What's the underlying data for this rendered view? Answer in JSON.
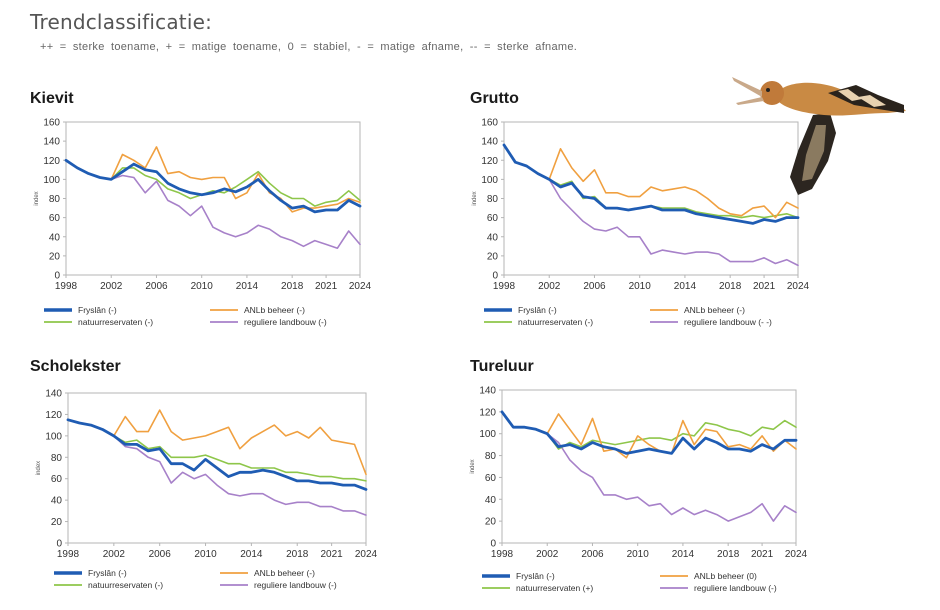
{
  "header": {
    "title": "Trendclassificatie:",
    "legend": "++ = sterke toename, + = matige toename, 0 = stabiel, - = matige afname, -- = sterke afname."
  },
  "colors": {
    "fryslan": "#1f5cb3",
    "anlb": "#f0a040",
    "natuur": "#8ec64a",
    "regulier": "#a781c9",
    "axis": "#b5b5b5"
  },
  "chart_data": [
    {
      "type": "line",
      "title": "Kievit",
      "ylabel": "index",
      "ylim": [
        0,
        160
      ],
      "yticks": [
        0,
        20,
        40,
        60,
        80,
        100,
        120,
        140,
        160
      ],
      "xlim": [
        1998,
        2024
      ],
      "xticks": [
        1998,
        2002,
        2006,
        2010,
        2014,
        2018,
        2021,
        2024
      ],
      "x": [
        1998,
        1999,
        2000,
        2001,
        2002,
        2003,
        2004,
        2005,
        2006,
        2007,
        2008,
        2009,
        2010,
        2011,
        2012,
        2013,
        2014,
        2015,
        2016,
        2017,
        2018,
        2019,
        2020,
        2021,
        2022,
        2023,
        2024
      ],
      "series": [
        {
          "key": "fryslan",
          "name": "Fryslân (-)",
          "values": [
            null,
            null,
            null,
            null,
            100,
            108,
            116,
            110,
            108,
            96,
            90,
            86,
            84,
            86,
            90,
            87,
            92,
            100,
            88,
            78,
            70,
            72,
            66,
            68,
            68,
            78,
            72
          ]
        },
        {
          "key": "anlb",
          "name": "ANLb beheer (-)",
          "values": [
            null,
            null,
            null,
            null,
            100,
            126,
            120,
            112,
            134,
            106,
            108,
            102,
            100,
            102,
            102,
            80,
            86,
            106,
            86,
            80,
            66,
            70,
            70,
            72,
            74,
            80,
            76
          ]
        },
        {
          "key": "natuur",
          "name": "natuurreservaten (-)",
          "values": [
            null,
            null,
            null,
            null,
            100,
            112,
            112,
            104,
            100,
            90,
            86,
            80,
            84,
            88,
            86,
            92,
            100,
            108,
            96,
            86,
            80,
            80,
            72,
            76,
            78,
            88,
            78
          ]
        },
        {
          "key": "regulier",
          "name": "reguliere landbouw (-)",
          "values": [
            null,
            null,
            null,
            null,
            100,
            104,
            102,
            86,
            98,
            78,
            72,
            62,
            72,
            50,
            44,
            40,
            44,
            52,
            48,
            40,
            36,
            30,
            36,
            32,
            28,
            46,
            32
          ]
        }
      ],
      "lead": {
        "key": "fryslan",
        "x": [
          1998,
          1999,
          2000,
          2001,
          2002
        ],
        "values": [
          120,
          112,
          106,
          102,
          100
        ]
      }
    },
    {
      "type": "line",
      "title": "Grutto",
      "ylabel": "index",
      "ylim": [
        0,
        160
      ],
      "yticks": [
        0,
        20,
        40,
        60,
        80,
        100,
        120,
        140,
        160
      ],
      "xlim": [
        1998,
        2024
      ],
      "xticks": [
        1998,
        2002,
        2006,
        2010,
        2014,
        2018,
        2021,
        2024
      ],
      "x": [
        1998,
        1999,
        2000,
        2001,
        2002,
        2003,
        2004,
        2005,
        2006,
        2007,
        2008,
        2009,
        2010,
        2011,
        2012,
        2013,
        2014,
        2015,
        2016,
        2017,
        2018,
        2019,
        2020,
        2021,
        2022,
        2023,
        2024
      ],
      "series": [
        {
          "key": "fryslan",
          "name": "Fryslân (-)",
          "values": [
            null,
            null,
            null,
            null,
            100,
            92,
            96,
            82,
            80,
            70,
            70,
            68,
            70,
            72,
            68,
            68,
            68,
            64,
            62,
            60,
            58,
            56,
            54,
            58,
            56,
            60,
            60
          ]
        },
        {
          "key": "anlb",
          "name": "ANLb beheer (-)",
          "values": [
            null,
            null,
            null,
            null,
            100,
            132,
            112,
            98,
            110,
            86,
            86,
            82,
            82,
            92,
            88,
            90,
            92,
            88,
            80,
            70,
            64,
            62,
            70,
            72,
            60,
            76,
            70
          ]
        },
        {
          "key": "natuur",
          "name": "natuurreservaten (-)",
          "values": [
            null,
            null,
            null,
            null,
            100,
            94,
            98,
            80,
            82,
            70,
            70,
            68,
            70,
            72,
            70,
            70,
            70,
            66,
            64,
            62,
            62,
            60,
            62,
            60,
            62,
            64,
            60
          ]
        },
        {
          "key": "regulier",
          "name": "reguliere landbouw (- -)",
          "values": [
            null,
            null,
            null,
            null,
            100,
            80,
            68,
            56,
            48,
            46,
            50,
            40,
            40,
            22,
            26,
            24,
            22,
            24,
            24,
            22,
            14,
            14,
            14,
            18,
            12,
            16,
            10
          ]
        }
      ],
      "lead": {
        "key": "fryslan",
        "x": [
          1998,
          1999,
          2000,
          2001,
          2002
        ],
        "values": [
          136,
          118,
          114,
          106,
          100
        ]
      }
    },
    {
      "type": "line",
      "title": "Scholekster",
      "ylabel": "index",
      "ylim": [
        0,
        140
      ],
      "yticks": [
        0,
        20,
        40,
        60,
        80,
        100,
        120,
        140
      ],
      "xlim": [
        1998,
        2024
      ],
      "xticks": [
        1998,
        2002,
        2006,
        2010,
        2014,
        2018,
        2021,
        2024
      ],
      "x": [
        1998,
        1999,
        2000,
        2001,
        2002,
        2003,
        2004,
        2005,
        2006,
        2007,
        2008,
        2009,
        2010,
        2011,
        2012,
        2013,
        2014,
        2015,
        2016,
        2017,
        2018,
        2019,
        2020,
        2021,
        2022,
        2023,
        2024
      ],
      "series": [
        {
          "key": "fryslan",
          "name": "Fryslân (-)",
          "values": [
            null,
            null,
            null,
            null,
            100,
            92,
            92,
            86,
            88,
            74,
            74,
            68,
            78,
            70,
            62,
            66,
            66,
            68,
            66,
            62,
            58,
            58,
            56,
            56,
            54,
            54,
            50
          ]
        },
        {
          "key": "anlb",
          "name": "ANLb beheer (-)",
          "values": [
            null,
            null,
            null,
            null,
            100,
            118,
            104,
            104,
            124,
            104,
            96,
            98,
            100,
            104,
            108,
            88,
            98,
            104,
            110,
            100,
            104,
            98,
            108,
            96,
            94,
            92,
            64
          ]
        },
        {
          "key": "natuur",
          "name": "natuurreservaten (-)",
          "values": [
            null,
            null,
            null,
            null,
            100,
            94,
            96,
            88,
            90,
            80,
            80,
            80,
            82,
            78,
            74,
            74,
            70,
            70,
            70,
            66,
            66,
            64,
            62,
            62,
            60,
            60,
            58
          ]
        },
        {
          "key": "regulier",
          "name": "reguliere landbouw (-)",
          "values": [
            null,
            null,
            null,
            null,
            100,
            90,
            88,
            80,
            76,
            56,
            66,
            60,
            64,
            54,
            46,
            44,
            46,
            46,
            40,
            36,
            38,
            38,
            34,
            34,
            30,
            30,
            26
          ]
        }
      ],
      "lead": {
        "key": "fryslan",
        "x": [
          1998,
          1999,
          2000,
          2001,
          2002
        ],
        "values": [
          115,
          112,
          110,
          106,
          100
        ]
      }
    },
    {
      "type": "line",
      "title": "Tureluur",
      "ylabel": "index",
      "ylim": [
        0,
        140
      ],
      "yticks": [
        0,
        20,
        40,
        60,
        80,
        100,
        120,
        140
      ],
      "xlim": [
        1998,
        2024
      ],
      "xticks": [
        1998,
        2002,
        2006,
        2010,
        2014,
        2018,
        2021,
        2024
      ],
      "x": [
        1998,
        1999,
        2000,
        2001,
        2002,
        2003,
        2004,
        2005,
        2006,
        2007,
        2008,
        2009,
        2010,
        2011,
        2012,
        2013,
        2014,
        2015,
        2016,
        2017,
        2018,
        2019,
        2020,
        2021,
        2022,
        2023,
        2024
      ],
      "series": [
        {
          "key": "fryslan",
          "name": "Fryslân (-)",
          "values": [
            null,
            null,
            null,
            null,
            100,
            88,
            90,
            86,
            92,
            88,
            86,
            82,
            84,
            86,
            84,
            82,
            96,
            86,
            96,
            92,
            86,
            86,
            84,
            90,
            86,
            94,
            94
          ]
        },
        {
          "key": "anlb",
          "name": "ANLb beheer (0)",
          "values": [
            null,
            null,
            null,
            null,
            100,
            118,
            104,
            90,
            114,
            84,
            86,
            78,
            98,
            90,
            84,
            82,
            112,
            90,
            104,
            102,
            88,
            90,
            86,
            98,
            84,
            94,
            86
          ]
        },
        {
          "key": "natuur",
          "name": "natuurreservaten (+)",
          "values": [
            null,
            null,
            null,
            null,
            100,
            86,
            92,
            88,
            94,
            92,
            90,
            92,
            94,
            96,
            96,
            94,
            100,
            98,
            110,
            108,
            104,
            102,
            98,
            106,
            104,
            112,
            106
          ]
        },
        {
          "key": "regulier",
          "name": "reguliere landbouw (-)",
          "values": [
            null,
            null,
            null,
            null,
            100,
            92,
            76,
            66,
            60,
            44,
            44,
            40,
            42,
            34,
            36,
            26,
            32,
            26,
            30,
            26,
            20,
            24,
            28,
            36,
            20,
            34,
            28
          ]
        }
      ],
      "lead": {
        "key": "fryslan",
        "x": [
          1998,
          1999,
          2000,
          2001,
          2002
        ],
        "values": [
          120,
          106,
          106,
          104,
          100
        ]
      }
    }
  ]
}
